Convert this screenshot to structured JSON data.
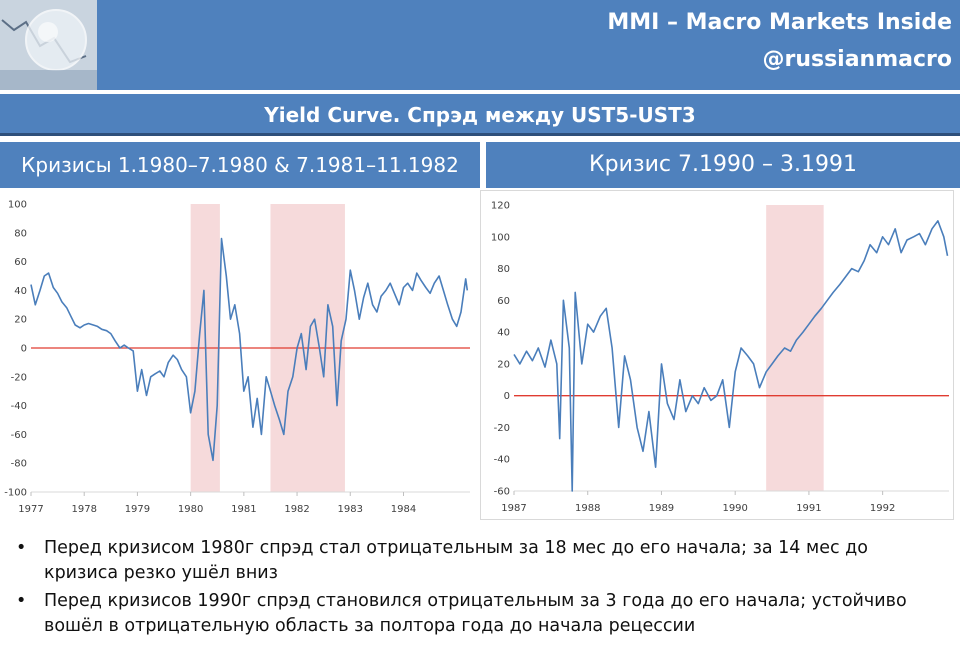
{
  "header": {
    "line1": "MMI – Macro Markets Inside",
    "line2": "@russianmacro"
  },
  "section_title": "Yield Curve. Спрэд между UST5-UST3",
  "panels": [
    {
      "title": "Кризисы 1.1980–7.1980 & 7.1981–11.1982"
    },
    {
      "title": "Кризис 7.1990 – 3.1991"
    }
  ],
  "colors": {
    "accent": "#4f81bd",
    "line": "#4a7ebb",
    "zero": "#e03c31",
    "crisis": "#f6dadb"
  },
  "chart_data": [
    {
      "type": "line",
      "title": "",
      "xlabel": "",
      "ylabel": "",
      "xlim": [
        1977.0,
        1985.25
      ],
      "ylim": [
        -100,
        100
      ],
      "y_ticks": [
        -100,
        -80,
        -60,
        -40,
        -20,
        0,
        20,
        40,
        60,
        80,
        100
      ],
      "x_ticks": [
        {
          "v": 1977,
          "label": "1977"
        },
        {
          "v": 1978,
          "label": "1978"
        },
        {
          "v": 1979,
          "label": "1979"
        },
        {
          "v": 1980,
          "label": "1980"
        },
        {
          "v": 1981,
          "label": "1981"
        },
        {
          "v": 1982,
          "label": "1982"
        },
        {
          "v": 1983,
          "label": "1983"
        },
        {
          "v": 1984,
          "label": "1984"
        }
      ],
      "crisis_bands": [
        [
          1980.0,
          1980.55
        ],
        [
          1981.5,
          1982.9
        ]
      ],
      "zero_line": 0,
      "series": [
        {
          "x": [
            1977.0,
            1977.08,
            1977.17,
            1977.25,
            1977.33,
            1977.42,
            1977.5,
            1977.58,
            1977.67,
            1977.75,
            1977.83,
            1977.92,
            1978.0,
            1978.08,
            1978.17,
            1978.25,
            1978.33,
            1978.42,
            1978.5,
            1978.58,
            1978.67,
            1978.75,
            1978.83,
            1978.92,
            1979.0,
            1979.08,
            1979.17,
            1979.25,
            1979.33,
            1979.42,
            1979.5,
            1979.58,
            1979.67,
            1979.75,
            1979.83,
            1979.92,
            1980.0,
            1980.08,
            1980.17,
            1980.25,
            1980.33,
            1980.42,
            1980.5,
            1980.58,
            1980.67,
            1980.75,
            1980.83,
            1980.92,
            1981.0,
            1981.08,
            1981.17,
            1981.25,
            1981.33,
            1981.42,
            1981.5,
            1981.58,
            1981.67,
            1981.75,
            1981.83,
            1981.92,
            1982.0,
            1982.08,
            1982.17,
            1982.25,
            1982.33,
            1982.42,
            1982.5,
            1982.58,
            1982.67,
            1982.75,
            1982.83,
            1982.92,
            1983.0,
            1983.08,
            1983.17,
            1983.25,
            1983.33,
            1983.42,
            1983.5,
            1983.58,
            1983.67,
            1983.75,
            1983.83,
            1983.92,
            1984.0,
            1984.08,
            1984.17,
            1984.25,
            1984.33,
            1984.42,
            1984.5,
            1984.58,
            1984.67,
            1984.75,
            1984.83,
            1984.92,
            1985.0,
            1985.08,
            1985.17,
            1985.2
          ],
          "y": [
            44,
            30,
            40,
            50,
            52,
            42,
            38,
            32,
            28,
            22,
            16,
            14,
            16,
            17,
            16,
            15,
            13,
            12,
            10,
            5,
            0,
            2,
            0,
            -2,
            -30,
            -15,
            -33,
            -20,
            -18,
            -16,
            -20,
            -10,
            -5,
            -8,
            -15,
            -20,
            -45,
            -30,
            10,
            40,
            -60,
            -78,
            -40,
            76,
            50,
            20,
            30,
            10,
            -30,
            -20,
            -55,
            -35,
            -60,
            -20,
            -30,
            -40,
            -50,
            -60,
            -30,
            -20,
            0,
            10,
            -15,
            15,
            20,
            0,
            -20,
            30,
            15,
            -40,
            5,
            20,
            54,
            40,
            20,
            35,
            45,
            30,
            25,
            36,
            40,
            45,
            38,
            30,
            42,
            45,
            40,
            52,
            47,
            42,
            38,
            45,
            50,
            40,
            30,
            20,
            15,
            25,
            48,
            40
          ]
        }
      ]
    },
    {
      "type": "line",
      "title": "",
      "xlabel": "",
      "ylabel": "",
      "xlim": [
        1987.0,
        1992.9
      ],
      "ylim": [
        -60,
        120
      ],
      "y_ticks": [
        -60,
        -40,
        -20,
        0,
        20,
        40,
        60,
        80,
        100,
        120
      ],
      "x_ticks": [
        {
          "v": 1987,
          "label": "1987"
        },
        {
          "v": 1988,
          "label": "1988"
        },
        {
          "v": 1989,
          "label": "1989"
        },
        {
          "v": 1990,
          "label": "1990"
        },
        {
          "v": 1991,
          "label": "1991"
        },
        {
          "v": 1992,
          "label": "1992"
        }
      ],
      "crisis_bands": [
        [
          1990.42,
          1991.2
        ]
      ],
      "zero_line": 0,
      "series": [
        {
          "x": [
            1987.0,
            1987.08,
            1987.17,
            1987.25,
            1987.33,
            1987.42,
            1987.5,
            1987.58,
            1987.62,
            1987.67,
            1987.75,
            1987.79,
            1987.83,
            1987.92,
            1988.0,
            1988.08,
            1988.17,
            1988.25,
            1988.33,
            1988.42,
            1988.5,
            1988.58,
            1988.67,
            1988.75,
            1988.83,
            1988.92,
            1989.0,
            1989.08,
            1989.17,
            1989.25,
            1989.33,
            1989.42,
            1989.5,
            1989.58,
            1989.67,
            1989.75,
            1989.83,
            1989.92,
            1990.0,
            1990.08,
            1990.17,
            1990.25,
            1990.33,
            1990.42,
            1990.5,
            1990.58,
            1990.67,
            1990.75,
            1990.83,
            1990.92,
            1991.0,
            1991.08,
            1991.17,
            1991.25,
            1991.33,
            1991.42,
            1991.5,
            1991.58,
            1991.67,
            1991.75,
            1991.83,
            1991.92,
            1992.0,
            1992.08,
            1992.17,
            1992.25,
            1992.33,
            1992.42,
            1992.5,
            1992.58,
            1992.67,
            1992.75,
            1992.83,
            1992.88
          ],
          "y": [
            26,
            20,
            28,
            22,
            30,
            18,
            35,
            20,
            -27,
            60,
            30,
            -60,
            65,
            20,
            45,
            40,
            50,
            55,
            30,
            -20,
            25,
            10,
            -20,
            -35,
            -10,
            -45,
            20,
            -5,
            -15,
            10,
            -10,
            0,
            -5,
            5,
            -3,
            0,
            10,
            -20,
            15,
            30,
            25,
            20,
            5,
            15,
            20,
            25,
            30,
            28,
            35,
            40,
            45,
            50,
            55,
            60,
            65,
            70,
            75,
            80,
            78,
            85,
            95,
            90,
            100,
            95,
            105,
            90,
            98,
            100,
            102,
            95,
            105,
            110,
            100,
            88
          ]
        }
      ]
    }
  ],
  "bullets": [
    "Перед кризисом 1980г спрэд стал отрицательным за 18 мес до его начала; за 14 мес до кризиса резко ушёл вниз",
    "Перед кризисов 1990г спрэд становился отрицательным за 3 года до его начала; устойчиво вошёл в отрицательную область за полтора года до начала рецессии"
  ]
}
